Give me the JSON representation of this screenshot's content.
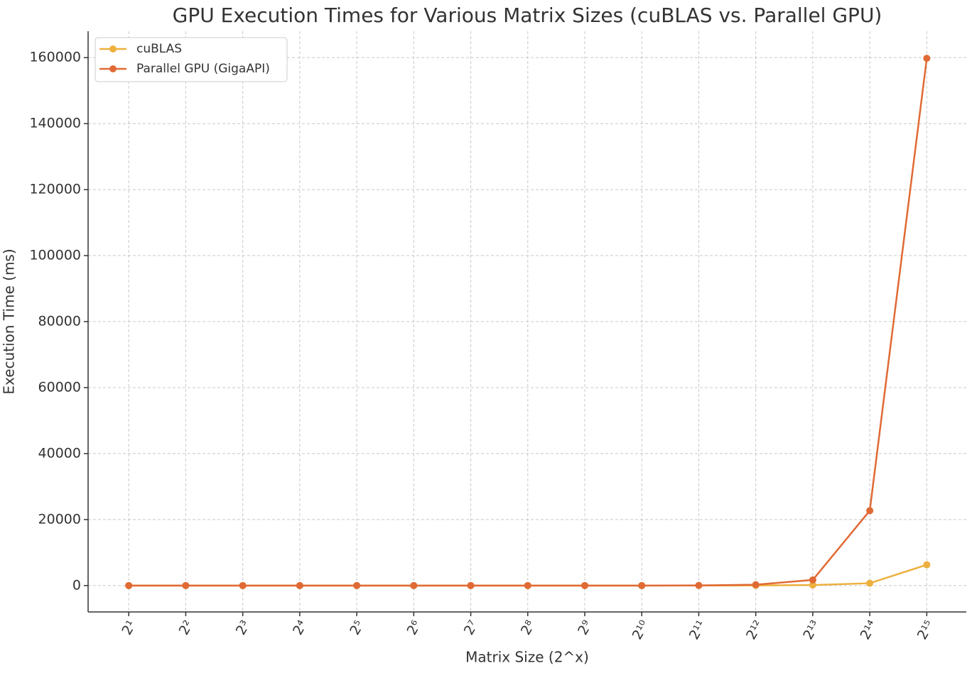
{
  "chart_data": {
    "type": "line",
    "title": "GPU Execution Times for Various Matrix Sizes (cuBLAS vs. Parallel GPU)",
    "x_label": "Matrix Size (2^x)",
    "y_label": "Execution Time (ms)",
    "x": [
      2,
      4,
      8,
      16,
      32,
      64,
      128,
      256,
      512,
      1024,
      2048,
      4096,
      8192,
      16384,
      32768
    ],
    "x_scale": "log2",
    "xlim": [
      1.22,
      53000
    ],
    "xticks": [
      {
        "value": 2,
        "label": "2¹"
      },
      {
        "value": 4,
        "label": "2²"
      },
      {
        "value": 8,
        "label": "2³"
      },
      {
        "value": 16,
        "label": "2⁴"
      },
      {
        "value": 32,
        "label": "2⁵"
      },
      {
        "value": 64,
        "label": "2⁶"
      },
      {
        "value": 128,
        "label": "2⁷"
      },
      {
        "value": 256,
        "label": "2⁸"
      },
      {
        "value": 512,
        "label": "2⁹"
      },
      {
        "value": 1024,
        "label": "2¹⁰"
      },
      {
        "value": 2048,
        "label": "2¹¹"
      },
      {
        "value": 4096,
        "label": "2¹²"
      },
      {
        "value": 8192,
        "label": "2¹³"
      },
      {
        "value": 16384,
        "label": "2¹⁴"
      },
      {
        "value": 32768,
        "label": "2¹⁵"
      }
    ],
    "ylim": [
      -8000,
      168000
    ],
    "yticks": [
      0,
      20000,
      40000,
      60000,
      80000,
      100000,
      120000,
      140000,
      160000
    ],
    "grid": true,
    "legend": "upper-left",
    "series": [
      {
        "name": "cuBLAS",
        "color": "#edb03e",
        "values": [
          0,
          0,
          0,
          0,
          0,
          0,
          0,
          0,
          0,
          0,
          10,
          50,
          150,
          700,
          6300
        ]
      },
      {
        "name": "Parallel GPU (GigaAPI)",
        "color": "#e06a35",
        "values": [
          0,
          0,
          0,
          0,
          0,
          0,
          0,
          0,
          0,
          0,
          40,
          250,
          1700,
          22700,
          159800
        ]
      }
    ]
  }
}
